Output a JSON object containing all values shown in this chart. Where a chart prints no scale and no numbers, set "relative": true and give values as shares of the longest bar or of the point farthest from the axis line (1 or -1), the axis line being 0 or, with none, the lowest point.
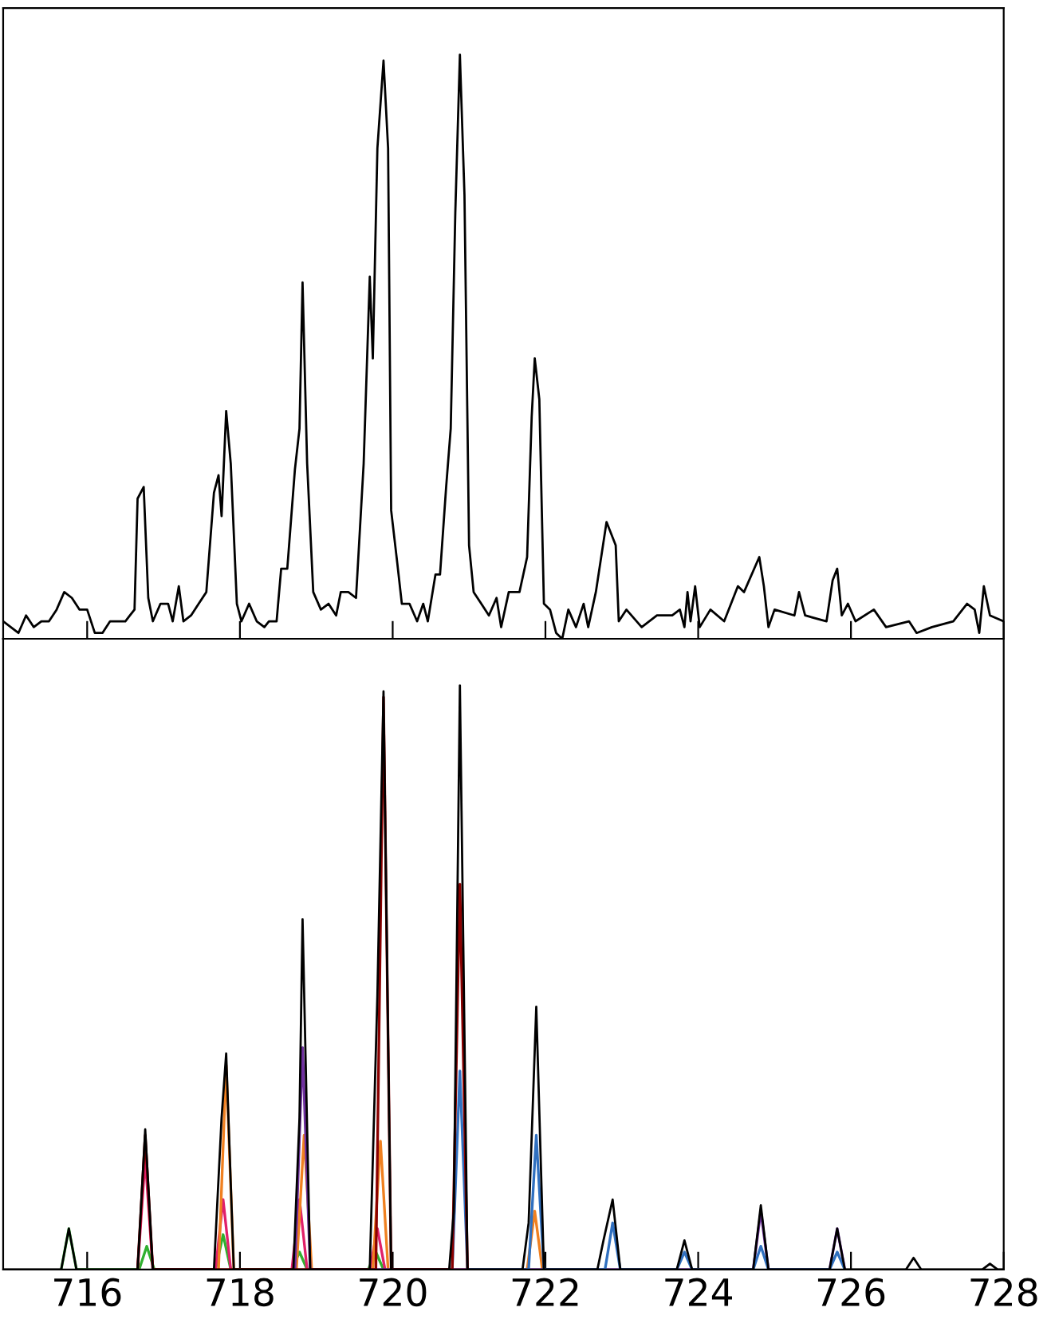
{
  "chart_data": [
    {
      "type": "line",
      "relative": true,
      "tick_labels": false,
      "xlim": [
        714.9,
        728.0
      ],
      "xticks": [
        716,
        718,
        720,
        722,
        724,
        726,
        728
      ],
      "grid": false,
      "legend": false,
      "marker": "none",
      "line_style": "solid",
      "series": [
        {
          "color": "#000000",
          "x": [
            714.9,
            715.0,
            715.1,
            715.2,
            715.3,
            715.4,
            715.5,
            715.6,
            715.7,
            715.8,
            715.9,
            716.0,
            716.1,
            716.2,
            716.3,
            716.4,
            716.5,
            716.56,
            716.62,
            716.66,
            716.74,
            716.8,
            716.86,
            716.96,
            717.06,
            717.12,
            717.2,
            717.26,
            717.36,
            717.46,
            717.56,
            717.66,
            717.72,
            717.76,
            717.82,
            717.88,
            717.96,
            718.02,
            718.12,
            718.22,
            718.32,
            718.38,
            718.48,
            718.54,
            718.62,
            718.72,
            718.78,
            718.82,
            718.88,
            718.96,
            719.06,
            719.16,
            719.26,
            719.32,
            719.42,
            719.52,
            719.62,
            719.7,
            719.74,
            719.8,
            719.88,
            719.94,
            719.98,
            720.06,
            720.12,
            720.22,
            720.32,
            720.4,
            720.46,
            720.56,
            720.62,
            720.7,
            720.76,
            720.82,
            720.88,
            720.94,
            721.0,
            721.06,
            721.16,
            721.26,
            721.36,
            721.42,
            721.52,
            721.66,
            721.76,
            721.82,
            721.86,
            721.92,
            721.98,
            722.06,
            722.14,
            722.22,
            722.3,
            722.4,
            722.5,
            722.56,
            722.66,
            722.8,
            722.92,
            722.96,
            723.06,
            723.26,
            723.46,
            723.66,
            723.76,
            723.82,
            723.86,
            723.9,
            723.96,
            724.02,
            724.16,
            724.34,
            724.52,
            724.6,
            724.8,
            724.86,
            724.92,
            725.0,
            725.26,
            725.32,
            725.4,
            725.68,
            725.76,
            725.82,
            725.88,
            725.96,
            726.06,
            726.3,
            726.46,
            726.76,
            726.86,
            727.06,
            727.34,
            727.52,
            727.62,
            727.68,
            727.74,
            727.82,
            728.0
          ],
          "values": [
            0.03,
            0.02,
            0.01,
            0.04,
            0.02,
            0.03,
            0.03,
            0.05,
            0.08,
            0.07,
            0.05,
            0.05,
            0.01,
            0.01,
            0.03,
            0.03,
            0.03,
            0.04,
            0.05,
            0.24,
            0.26,
            0.07,
            0.03,
            0.06,
            0.06,
            0.03,
            0.09,
            0.03,
            0.04,
            0.06,
            0.08,
            0.25,
            0.28,
            0.21,
            0.39,
            0.3,
            0.06,
            0.03,
            0.06,
            0.03,
            0.02,
            0.03,
            0.03,
            0.12,
            0.12,
            0.29,
            0.36,
            0.61,
            0.3,
            0.08,
            0.05,
            0.06,
            0.04,
            0.08,
            0.08,
            0.07,
            0.3,
            0.62,
            0.48,
            0.84,
            0.99,
            0.84,
            0.22,
            0.13,
            0.06,
            0.06,
            0.03,
            0.06,
            0.03,
            0.11,
            0.11,
            0.26,
            0.36,
            0.73,
            1.0,
            0.76,
            0.16,
            0.08,
            0.06,
            0.04,
            0.07,
            0.02,
            0.08,
            0.08,
            0.14,
            0.38,
            0.48,
            0.41,
            0.06,
            0.05,
            0.01,
            0.0,
            0.05,
            0.02,
            0.06,
            0.02,
            0.08,
            0.2,
            0.16,
            0.03,
            0.05,
            0.02,
            0.04,
            0.04,
            0.05,
            0.02,
            0.08,
            0.03,
            0.09,
            0.02,
            0.05,
            0.03,
            0.09,
            0.08,
            0.14,
            0.09,
            0.02,
            0.05,
            0.04,
            0.08,
            0.04,
            0.03,
            0.1,
            0.12,
            0.04,
            0.06,
            0.03,
            0.05,
            0.02,
            0.03,
            0.01,
            0.02,
            0.03,
            0.06,
            0.05,
            0.01,
            0.09,
            0.04,
            0.03
          ]
        }
      ]
    },
    {
      "type": "line",
      "relative": true,
      "tick_labels": "x",
      "xlim": [
        714.9,
        728.0
      ],
      "xticks": [
        716,
        718,
        720,
        722,
        724,
        726,
        728
      ],
      "grid": false,
      "legend": false,
      "marker": "none",
      "line_style": "solid",
      "series": [
        {
          "color": "#30b030",
          "x": [
            715.66,
            715.76,
            715.86,
            716.68,
            716.78,
            716.88,
            717.68,
            717.78,
            717.88,
            718.68,
            718.78,
            718.88,
            719.68,
            719.78,
            719.88
          ],
          "values": [
            0,
            0.07,
            0,
            0,
            0.04,
            0,
            0,
            0.06,
            0,
            0,
            0.03,
            0,
            0,
            0.03,
            0
          ]
        },
        {
          "color": "#e0206a",
          "x": [
            716.66,
            716.76,
            716.86,
            717.68,
            717.78,
            717.88,
            718.68,
            718.78,
            718.88,
            719.7,
            719.8,
            719.9
          ],
          "values": [
            0,
            0.19,
            0,
            0,
            0.12,
            0,
            0,
            0.12,
            0,
            0,
            0.07,
            0
          ]
        },
        {
          "color": "#f08020",
          "x": [
            717.72,
            717.82,
            717.92,
            718.74,
            718.84,
            718.94,
            719.74,
            719.84,
            719.94,
            721.76,
            721.86,
            721.96
          ],
          "values": [
            0,
            0.35,
            0,
            0,
            0.23,
            0,
            0,
            0.22,
            0,
            0,
            0.1,
            0
          ]
        },
        {
          "color": "#7030a0",
          "x": [
            718.72,
            718.82,
            718.92,
            724.72,
            724.82,
            724.92,
            725.72,
            725.82,
            725.92
          ],
          "values": [
            0,
            0.38,
            0,
            0,
            0.1,
            0,
            0,
            0.07,
            0
          ]
        },
        {
          "color": "#3070c0",
          "x": [
            720.78,
            720.88,
            720.98,
            721.78,
            721.88,
            721.98,
            722.78,
            722.88,
            722.98,
            723.72,
            723.82,
            723.92,
            724.72,
            724.82,
            724.92,
            725.72,
            725.82,
            725.92
          ],
          "values": [
            0,
            0.34,
            0,
            0,
            0.23,
            0,
            0,
            0.08,
            0,
            0,
            0.03,
            0,
            0,
            0.04,
            0,
            0,
            0.03,
            0
          ]
        },
        {
          "color": "#8b0000",
          "x": [
            716.66,
            716.76,
            716.86,
            719.78,
            719.88,
            719.98,
            720.78,
            720.88,
            720.98
          ],
          "values": [
            0,
            0.23,
            0,
            0,
            0.98,
            0,
            0,
            0.66,
            0
          ]
        },
        {
          "color": "#000000",
          "x": [
            714.9,
            715.66,
            715.76,
            715.86,
            716.66,
            716.76,
            716.86,
            717.66,
            717.76,
            717.82,
            717.92,
            718.7,
            718.78,
            718.82,
            718.92,
            719.7,
            719.8,
            719.88,
            719.98,
            720.74,
            720.8,
            720.88,
            720.98,
            721.7,
            721.78,
            721.88,
            721.98,
            722.68,
            722.76,
            722.88,
            722.98,
            723.72,
            723.82,
            723.92,
            724.72,
            724.82,
            724.92,
            725.72,
            725.82,
            725.92,
            726.72,
            726.82,
            726.92,
            727.72,
            727.82,
            727.92,
            728.0
          ],
          "values": [
            0,
            0,
            0.07,
            0,
            0,
            0.24,
            0,
            0,
            0.26,
            0.37,
            0,
            0,
            0.26,
            0.6,
            0,
            0,
            0.47,
            0.99,
            0,
            0,
            0.1,
            1.0,
            0,
            0,
            0.08,
            0.45,
            0,
            0,
            0.05,
            0.12,
            0,
            0,
            0.05,
            0,
            0,
            0.11,
            0,
            0,
            0.07,
            0,
            0,
            0.02,
            0,
            0,
            0.01,
            0,
            0
          ]
        }
      ]
    }
  ]
}
